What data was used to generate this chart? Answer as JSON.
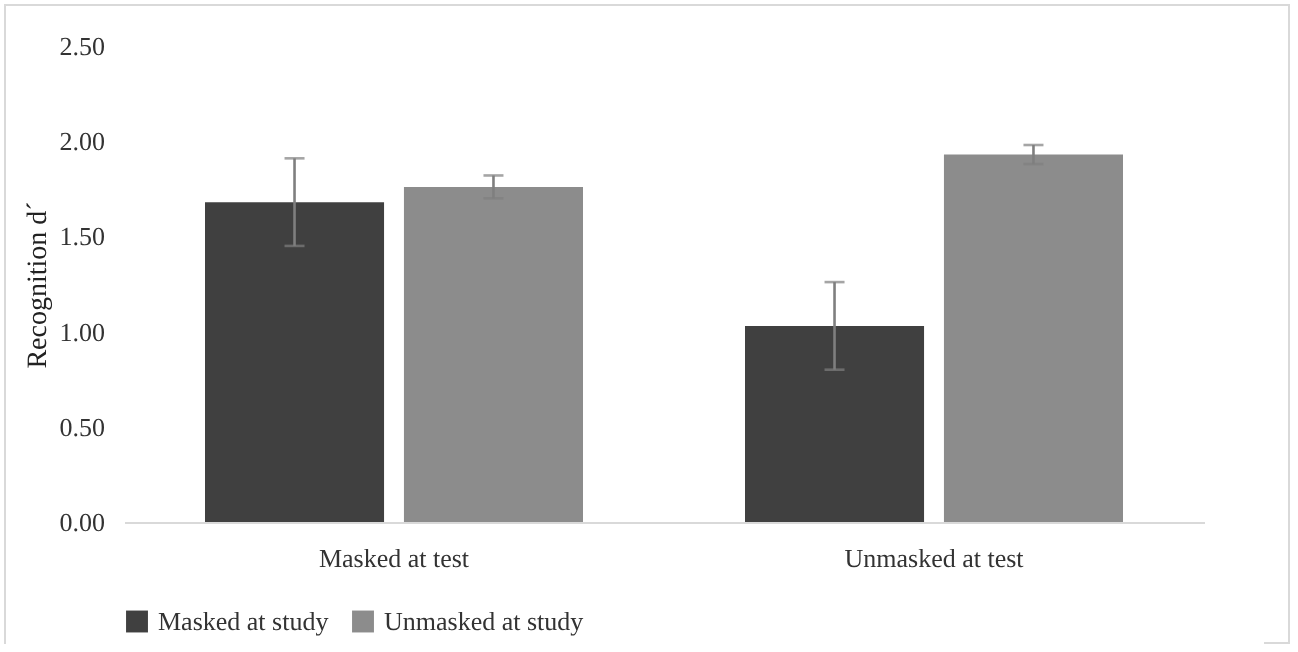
{
  "chart_data": {
    "type": "bar",
    "ylabel": "Recognition d´",
    "categories": [
      "Masked at test",
      "Unmasked at test"
    ],
    "series": [
      {
        "name": "Masked at study",
        "color": "#404040",
        "values": [
          1.68,
          1.03
        ],
        "errors": [
          0.23,
          0.23
        ]
      },
      {
        "name": "Unmasked at study",
        "color": "#8c8c8c",
        "values": [
          1.76,
          1.93
        ],
        "errors": [
          0.06,
          0.05
        ]
      }
    ],
    "ylim": [
      0,
      2.5
    ],
    "yticks": [
      {
        "value": 0,
        "label": "0.00"
      },
      {
        "value": 0.5,
        "label": "0.50"
      },
      {
        "value": 1,
        "label": "1.00"
      },
      {
        "value": 1.5,
        "label": "1.50"
      },
      {
        "value": 2,
        "label": "2.00"
      },
      {
        "value": 2.5,
        "label": "2.50"
      }
    ],
    "grid": false,
    "legend": "bottom"
  }
}
